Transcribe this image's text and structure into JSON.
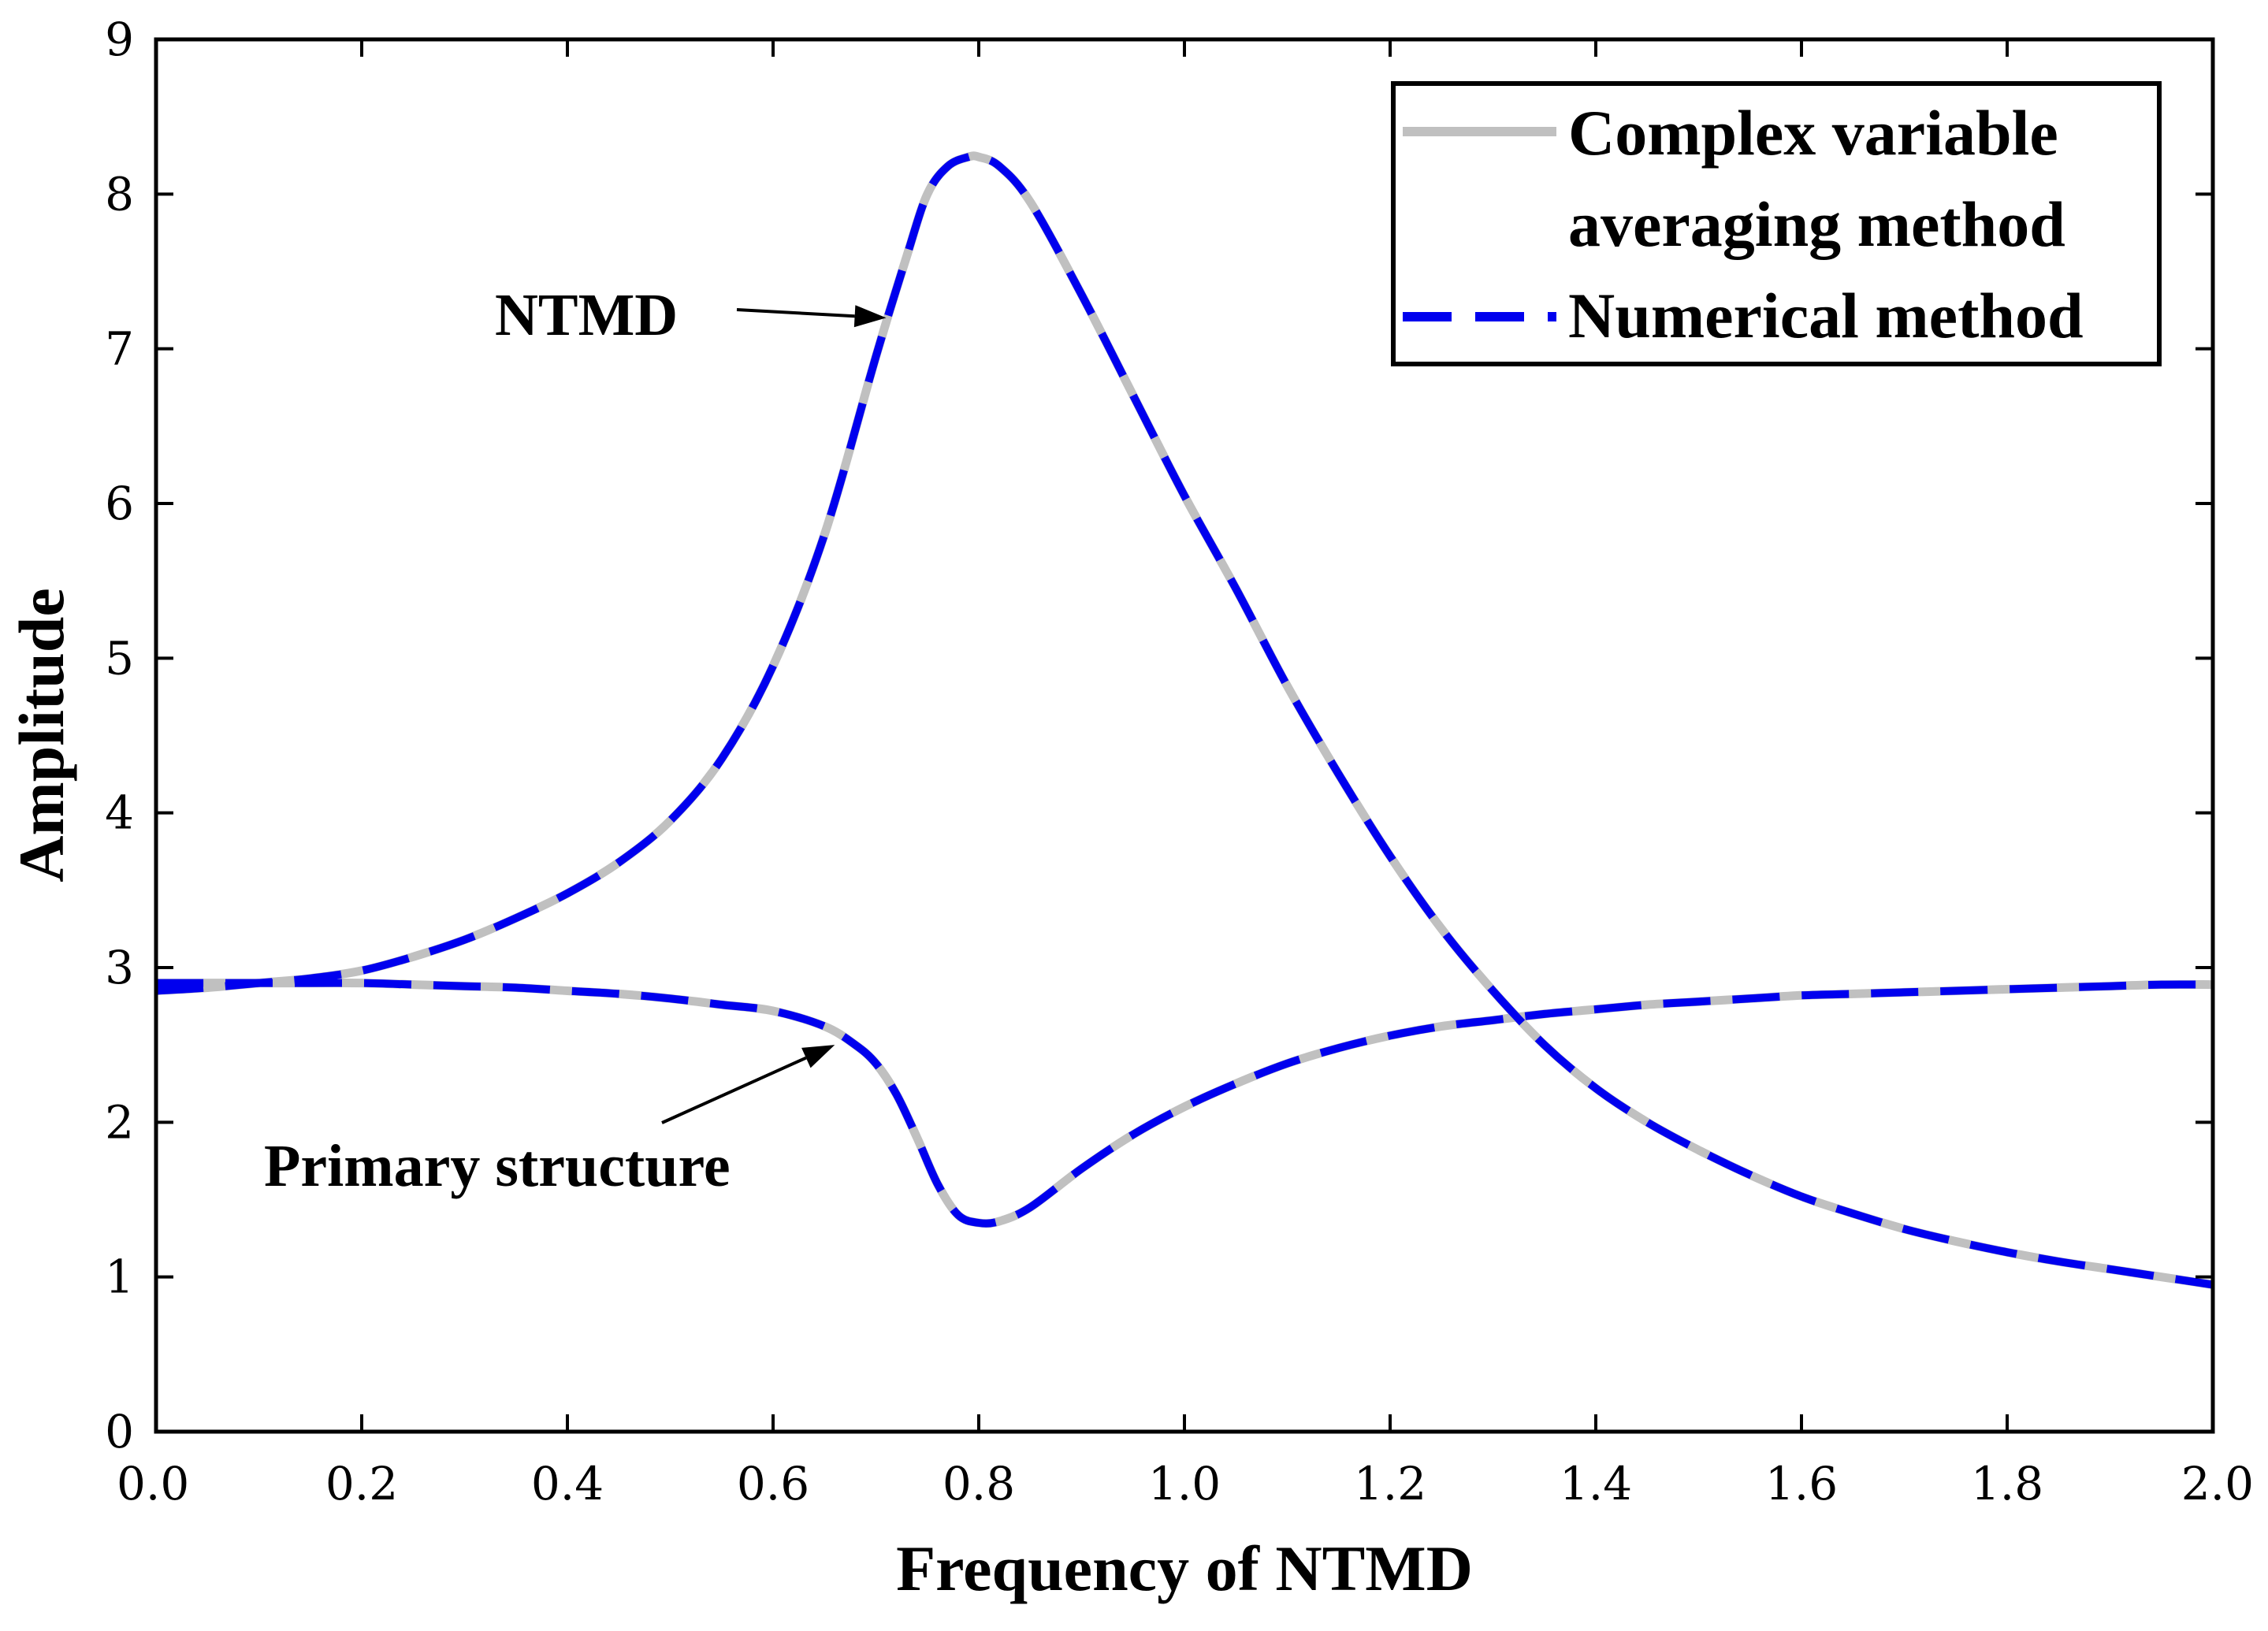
{
  "chart_data": {
    "type": "line",
    "title": "",
    "xlabel": "Frequency of NTMD",
    "ylabel": "Amplitude",
    "xlim": [
      0,
      2
    ],
    "ylim": [
      0,
      9
    ],
    "xticks": [
      0,
      0.2,
      0.4,
      0.6,
      0.8,
      1.0,
      1.2,
      1.4,
      1.6,
      1.8,
      2.0
    ],
    "xtick_labels": [
      "0.0",
      "0.2",
      "0.4",
      "0.6",
      "0.8",
      "1.0",
      "1.2",
      "1.4",
      "1.6",
      "1.8",
      "2.0"
    ],
    "yticks": [
      0,
      1,
      2,
      3,
      4,
      5,
      6,
      7,
      8,
      9
    ],
    "ytick_labels": [
      "0",
      "1",
      "2",
      "3",
      "4",
      "5",
      "6",
      "7",
      "8",
      "9"
    ],
    "grid": false,
    "legend_position": "top-right",
    "legend": [
      {
        "lines": [
          "Complex variable",
          "averaging method"
        ],
        "color": "#c0c0c0",
        "style": "solid"
      },
      {
        "lines": [
          "Numerical method"
        ],
        "color": "#0000ee",
        "style": "dashed"
      }
    ],
    "series": [
      {
        "name": "NTMD",
        "x": [
          0.0,
          0.05,
          0.1,
          0.15,
          0.2,
          0.25,
          0.3,
          0.35,
          0.4,
          0.45,
          0.5,
          0.55,
          0.6,
          0.65,
          0.7,
          0.73,
          0.75,
          0.77,
          0.79,
          0.8,
          0.82,
          0.85,
          0.9,
          0.95,
          1.0,
          1.05,
          1.1,
          1.15,
          1.2,
          1.25,
          1.3,
          1.35,
          1.4,
          1.45,
          1.5,
          1.55,
          1.6,
          1.65,
          1.7,
          1.75,
          1.8,
          1.85,
          1.9,
          1.95,
          2.0
        ],
        "y": [
          2.85,
          2.87,
          2.9,
          2.93,
          2.98,
          3.07,
          3.18,
          3.32,
          3.48,
          3.68,
          3.95,
          4.35,
          4.95,
          5.8,
          6.95,
          7.6,
          8.0,
          8.18,
          8.24,
          8.24,
          8.18,
          7.95,
          7.35,
          6.7,
          6.05,
          5.45,
          4.82,
          4.25,
          3.72,
          3.25,
          2.85,
          2.5,
          2.22,
          2.0,
          1.82,
          1.66,
          1.52,
          1.41,
          1.31,
          1.23,
          1.16,
          1.1,
          1.05,
          1.0,
          0.95
        ]
      },
      {
        "name": "Primary structure",
        "x": [
          0.0,
          0.05,
          0.1,
          0.15,
          0.2,
          0.25,
          0.3,
          0.35,
          0.4,
          0.45,
          0.5,
          0.55,
          0.6,
          0.65,
          0.68,
          0.7,
          0.72,
          0.74,
          0.76,
          0.78,
          0.8,
          0.82,
          0.85,
          0.9,
          0.95,
          1.0,
          1.05,
          1.1,
          1.15,
          1.2,
          1.25,
          1.3,
          1.35,
          1.4,
          1.45,
          1.5,
          1.55,
          1.6,
          1.65,
          1.7,
          1.75,
          1.8,
          1.85,
          1.9,
          1.95,
          2.0
        ],
        "y": [
          2.9,
          2.9,
          2.9,
          2.9,
          2.9,
          2.89,
          2.88,
          2.87,
          2.85,
          2.83,
          2.8,
          2.76,
          2.72,
          2.62,
          2.5,
          2.38,
          2.18,
          1.9,
          1.6,
          1.4,
          1.35,
          1.36,
          1.45,
          1.7,
          1.92,
          2.1,
          2.25,
          2.38,
          2.48,
          2.56,
          2.62,
          2.66,
          2.7,
          2.73,
          2.76,
          2.78,
          2.8,
          2.82,
          2.83,
          2.84,
          2.85,
          2.86,
          2.87,
          2.88,
          2.89,
          2.89
        ]
      }
    ],
    "annotations": [
      {
        "text": "NTMD",
        "target_series": "NTMD",
        "arrow_to": [
          0.71,
          7.2
        ]
      },
      {
        "text": "Primary structure",
        "target_series": "Primary structure",
        "arrow_to": [
          0.66,
          2.5
        ]
      }
    ]
  }
}
